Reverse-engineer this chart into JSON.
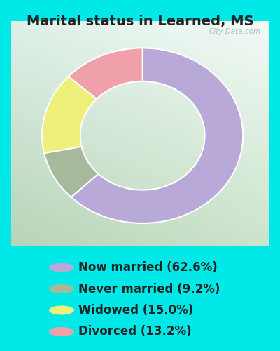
{
  "title": "Marital status in Learned, MS",
  "slices": [
    62.6,
    9.2,
    15.0,
    13.2
  ],
  "labels": [
    "Now married (62.6%)",
    "Never married (9.2%)",
    "Widowed (15.0%)",
    "Divorced (13.2%)"
  ],
  "colors": [
    "#b8a9d9",
    "#a8b89a",
    "#eef07a",
    "#f0a0a8"
  ],
  "bg_cyan": "#00e8e8",
  "chart_bg_tl": "#dff0e8",
  "chart_bg_tr": "#f0f8f4",
  "chart_bg_bl": "#c8dfc0",
  "chart_bg_br": "#d8ecd8",
  "title_fontsize": 14,
  "legend_fontsize": 12,
  "start_angle": 90,
  "watermark": "City-Data.com"
}
